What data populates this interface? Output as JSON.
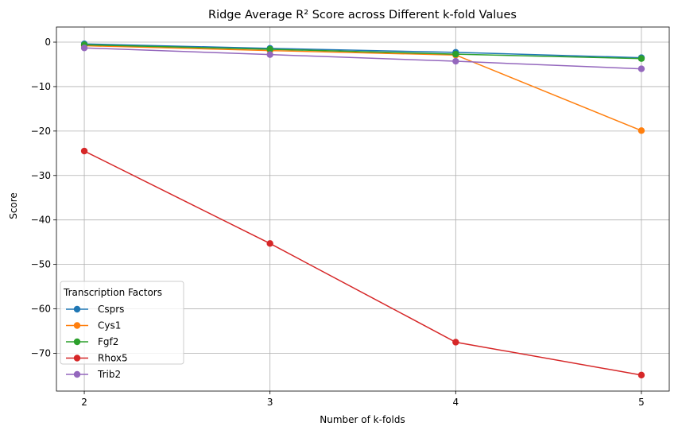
{
  "chart_data": {
    "type": "line",
    "title": "Ridge Average R² Score across Different k-fold Values",
    "xlabel": "Number of k-folds",
    "ylabel": "Score",
    "x": [
      2,
      3,
      4,
      5
    ],
    "xticks": [
      "2",
      "3",
      "4",
      "5"
    ],
    "yticks": [
      0,
      -10,
      -20,
      -30,
      -40,
      -50,
      -60,
      -70
    ],
    "ytick_labels": [
      "0",
      "−10",
      "−20",
      "−30",
      "−40",
      "−50",
      "−60",
      "−70"
    ],
    "xlim": [
      1.85,
      5.15
    ],
    "ylim": [
      -78.5,
      3.4
    ],
    "grid": true,
    "legend": {
      "title": "Transcription Factors",
      "placement": "lower-left"
    },
    "series": [
      {
        "name": "Csprs",
        "color": "#1f77b4",
        "values": [
          -0.4,
          -1.4,
          -2.3,
          -3.5
        ]
      },
      {
        "name": "Cys1",
        "color": "#ff7f0e",
        "values": [
          -0.8,
          -1.9,
          -2.9,
          -19.9
        ]
      },
      {
        "name": "Fgf2",
        "color": "#2ca02c",
        "values": [
          -0.6,
          -1.6,
          -2.7,
          -3.7
        ]
      },
      {
        "name": "Rhox5",
        "color": "#d62728",
        "values": [
          -24.5,
          -45.3,
          -67.5,
          -74.9
        ]
      },
      {
        "name": "Trib2",
        "color": "#9467bd",
        "values": [
          -1.3,
          -2.8,
          -4.3,
          -6.0
        ]
      }
    ]
  }
}
